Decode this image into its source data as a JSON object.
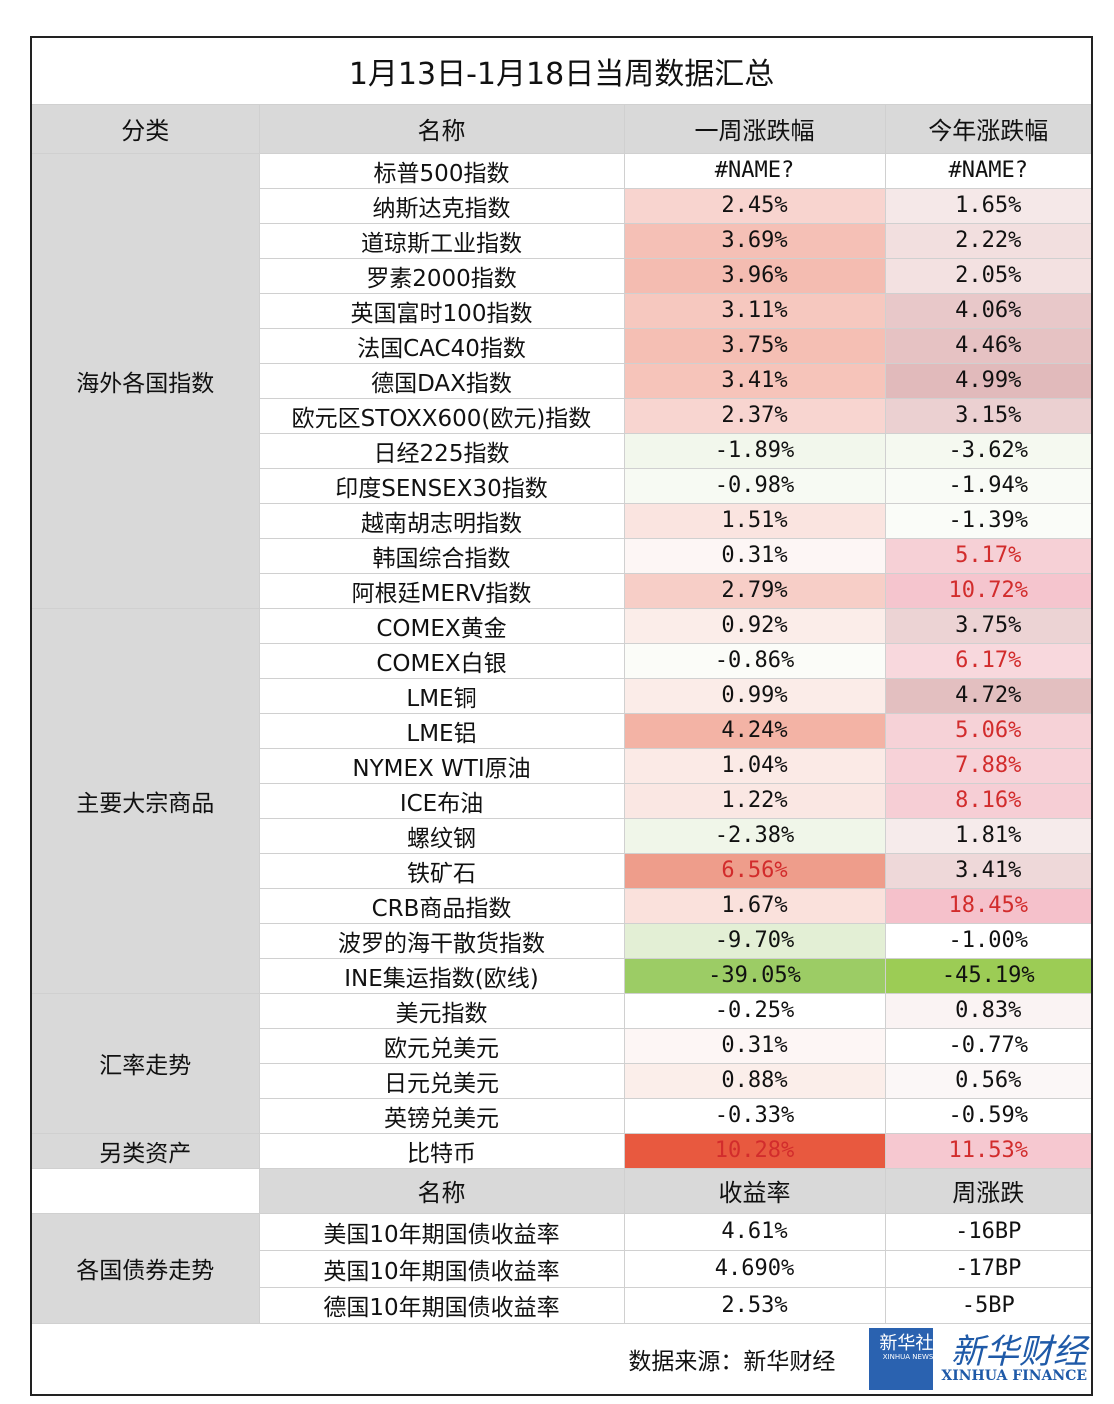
{
  "title": "1月13日-1月18日当周数据汇总",
  "table": {
    "headers": [
      "分类",
      "名称",
      "一周涨跌幅",
      "今年涨跌幅"
    ],
    "groups": [
      {
        "label": "海外各国指数",
        "rows": [
          [
            "标普500指数",
            "#NAME?",
            "#NAME?"
          ],
          [
            "纳斯达克指数",
            "2.45%",
            "1.65%"
          ],
          [
            "道琼斯工业指数",
            "3.69%",
            "2.22%"
          ],
          [
            "罗素2000指数",
            "3.96%",
            "2.05%"
          ],
          [
            "英国富时100指数",
            "3.11%",
            "4.06%"
          ],
          [
            "法国CAC40指数",
            "3.75%",
            "4.46%"
          ],
          [
            "德国DAX指数",
            "3.41%",
            "4.99%"
          ],
          [
            "欧元区STOXX600(欧元)指数",
            "2.37%",
            "3.15%"
          ],
          [
            "日经225指数",
            "-1.89%",
            "-3.62%"
          ],
          [
            "印度SENSEX30指数",
            "-0.98%",
            "-1.94%"
          ],
          [
            "越南胡志明指数",
            "1.51%",
            "-1.39%"
          ],
          [
            "韩国综合指数",
            "0.31%",
            "5.17%"
          ],
          [
            "阿根廷MERV指数",
            "2.79%",
            "10.72%"
          ]
        ]
      },
      {
        "label": "主要大宗商品",
        "rows": [
          [
            "COMEX黄金",
            "0.92%",
            "3.75%"
          ],
          [
            "COMEX白银",
            "-0.86%",
            "6.17%"
          ],
          [
            "LME铜",
            "0.99%",
            "4.72%"
          ],
          [
            "LME铝",
            "4.24%",
            "5.06%"
          ],
          [
            "NYMEX WTI原油",
            "1.04%",
            "7.88%"
          ],
          [
            "ICE布油",
            "1.22%",
            "8.16%"
          ],
          [
            "螺纹钢",
            "-2.38%",
            "1.81%"
          ],
          [
            "铁矿石",
            "6.56%",
            "3.41%"
          ],
          [
            "CRB商品指数",
            "1.67%",
            "18.45%"
          ],
          [
            "波罗的海干散货指数",
            "-9.70%",
            "-1.00%"
          ],
          [
            "INE集运指数(欧线)",
            "-39.05%",
            "-45.19%"
          ]
        ]
      },
      {
        "label": "汇率走势",
        "rows": [
          [
            "美元指数",
            "-0.25%",
            "0.83%"
          ],
          [
            "欧元兑美元",
            "0.31%",
            "-0.77%"
          ],
          [
            "日元兑美元",
            "0.88%",
            "0.56%"
          ],
          [
            "英镑兑美元",
            "-0.33%",
            "-0.59%"
          ]
        ]
      },
      {
        "label": "另类资产",
        "rows": [
          [
            "比特币",
            "10.28%",
            "11.53%"
          ]
        ]
      }
    ]
  },
  "bonds": {
    "headers": [
      "名称",
      "收益率",
      "周涨跌"
    ],
    "label": "各国债券走势",
    "rows": [
      [
        "美国10年期国债收益率",
        "4.61%",
        "-16BP"
      ],
      [
        "英国10年期国债收益率",
        "4.690%",
        "-17BP"
      ],
      [
        "德国10年期国债收益率",
        "2.53%",
        "-5BP"
      ]
    ]
  },
  "footer": {
    "source": "数据来源：新华财经",
    "logo": [
      "新华社",
      "XINHUA NEWS"
    ],
    "brand": [
      "新华财经",
      "XINHUA FINANCE"
    ]
  }
}
